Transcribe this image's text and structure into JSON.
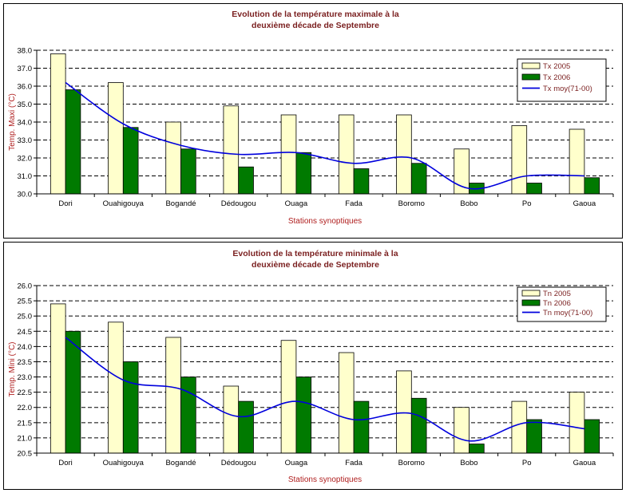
{
  "chart_data": [
    {
      "type": "bar",
      "title_line1": "Evolution de la température maximale à la",
      "title_line2": "deuxième décade de Septembre",
      "xlabel": "Stations synoptiques",
      "ylabel": "Temp. Maxi (°C)",
      "ylim": [
        30.0,
        38.0
      ],
      "yticks": [
        "30.0",
        "31.0",
        "32.0",
        "33.0",
        "34.0",
        "35.0",
        "36.0",
        "37.0",
        "38.0"
      ],
      "grid": true,
      "legend_position": "top-right",
      "categories": [
        "Dori",
        "Ouahigouya",
        "Bogandé",
        "Dédougou",
        "Ouaga",
        "Fada",
        "Boromo",
        "Bobo",
        "Po",
        "Gaoua"
      ],
      "series": [
        {
          "name": "Tx  2005",
          "kind": "bar",
          "color": "#ffffcc",
          "values": [
            37.8,
            36.2,
            34.0,
            34.9,
            34.4,
            34.4,
            34.4,
            32.5,
            33.8,
            33.6
          ]
        },
        {
          "name": "Tx  2006",
          "kind": "bar",
          "color": "#007a00",
          "values": [
            35.8,
            33.7,
            32.5,
            31.5,
            32.3,
            31.4,
            31.7,
            30.6,
            30.6,
            30.9
          ]
        },
        {
          "name": "Tx moy(71-00)",
          "kind": "line",
          "color": "#0000dd",
          "values": [
            36.2,
            33.9,
            32.7,
            32.2,
            32.3,
            31.7,
            32.0,
            30.3,
            31.0,
            31.0
          ]
        }
      ]
    },
    {
      "type": "bar",
      "title_line1": "Evolution de la température minimale à la",
      "title_line2": "deuxième décade de Septembre",
      "xlabel": "Stations synoptiques",
      "ylabel": "Temp. Mini (°C)",
      "ylim": [
        20.5,
        26.0
      ],
      "yticks": [
        "20.5",
        "21.0",
        "21.5",
        "22.0",
        "22.5",
        "23.0",
        "23.5",
        "24.0",
        "24.5",
        "25.0",
        "25.5",
        "26.0"
      ],
      "grid": true,
      "legend_position": "top-right",
      "categories": [
        "Dori",
        "Ouahigouya",
        "Bogandé",
        "Dédougou",
        "Ouaga",
        "Fada",
        "Boromo",
        "Bobo",
        "Po",
        "Gaoua"
      ],
      "series": [
        {
          "name": "Tn  2005",
          "kind": "bar",
          "color": "#ffffcc",
          "values": [
            25.4,
            24.8,
            24.3,
            22.7,
            24.2,
            23.8,
            23.2,
            22.0,
            22.2,
            22.5
          ]
        },
        {
          "name": "Tn  2006",
          "kind": "bar",
          "color": "#007a00",
          "values": [
            24.5,
            23.5,
            23.0,
            22.2,
            23.0,
            22.2,
            22.3,
            20.8,
            21.6,
            21.6
          ]
        },
        {
          "name": "Tn moy(71-00)",
          "kind": "line",
          "color": "#0000dd",
          "values": [
            24.3,
            22.9,
            22.6,
            21.7,
            22.2,
            21.6,
            21.8,
            20.9,
            21.5,
            21.3
          ]
        }
      ]
    }
  ]
}
